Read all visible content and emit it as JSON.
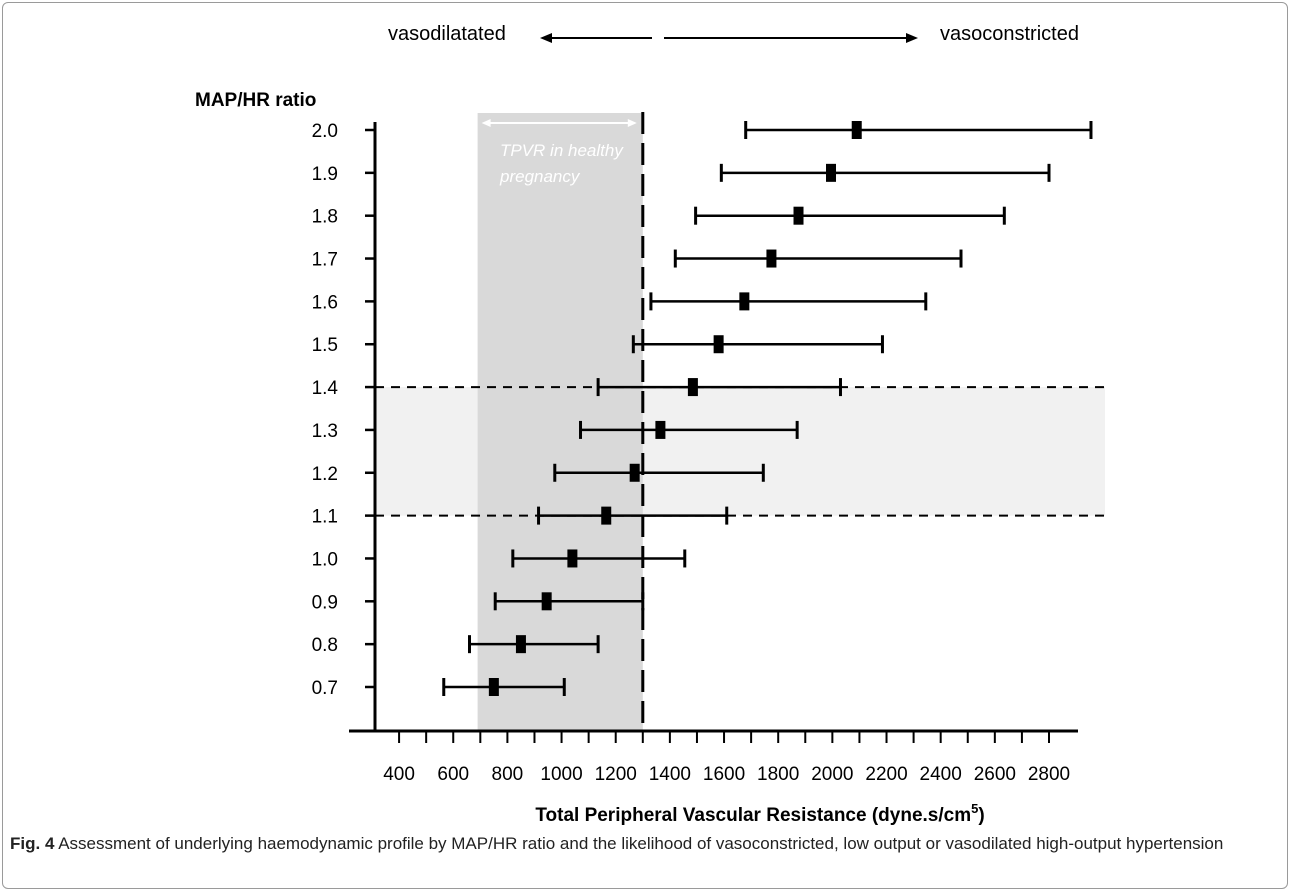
{
  "chart_data": {
    "type": "error-bar",
    "ylabel": "MAP/HR ratio",
    "xlabel": "Total Peripheral Vascular Resistance (dyne.s/cm",
    "xlabel_sup": "5",
    "xlabel_tail": ")",
    "xticks": [
      400,
      600,
      800,
      1000,
      1200,
      1400,
      1600,
      1800,
      2000,
      2200,
      2400,
      2600,
      2800
    ],
    "xlim": [
      200,
      2850
    ],
    "ylim": [
      0.6,
      2.0
    ],
    "categories": [
      "0.7",
      "0.8",
      "0.9",
      "1.0",
      "1.1",
      "1.2",
      "1.3",
      "1.4",
      "1.5",
      "1.6",
      "1.7",
      "1.8",
      "1.9",
      "2.0"
    ],
    "series": [
      {
        "points": [
          {
            "y": 0.7,
            "mean": 750,
            "low": 565,
            "high": 1010
          },
          {
            "y": 0.8,
            "mean": 850,
            "low": 660,
            "high": 1135
          },
          {
            "y": 0.9,
            "mean": 945,
            "low": 755,
            "high": 1300
          },
          {
            "y": 1.0,
            "mean": 1040,
            "low": 820,
            "high": 1455
          },
          {
            "y": 1.1,
            "mean": 1165,
            "low": 915,
            "high": 1610
          },
          {
            "y": 1.2,
            "mean": 1270,
            "low": 975,
            "high": 1745
          },
          {
            "y": 1.3,
            "mean": 1365,
            "low": 1070,
            "high": 1870
          },
          {
            "y": 1.4,
            "mean": 1485,
            "low": 1135,
            "high": 2030
          },
          {
            "y": 1.5,
            "mean": 1580,
            "low": 1265,
            "high": 2185
          },
          {
            "y": 1.6,
            "mean": 1675,
            "low": 1330,
            "high": 2345
          },
          {
            "y": 1.7,
            "mean": 1775,
            "low": 1420,
            "high": 2475
          },
          {
            "y": 1.8,
            "mean": 1875,
            "low": 1495,
            "high": 2635
          },
          {
            "y": 1.9,
            "mean": 1995,
            "low": 1590,
            "high": 2800
          },
          {
            "y": 2.0,
            "mean": 2090,
            "low": 1680,
            "high": 2955
          }
        ]
      }
    ],
    "reference_line_x": 1300,
    "healthy_band_x": [
      690,
      1300
    ],
    "highlight_band_y": [
      1.1,
      1.4
    ],
    "annotations": {
      "healthy": "TPVR in healthy pregnancy",
      "left_direction": "vasodilatated",
      "right_direction": "vasoconstricted"
    },
    "grid": false
  },
  "caption": {
    "label": "Fig. 4",
    "text": " Assessment of underlying haemodynamic profile by MAP/HR ratio and the likelihood of vasoconstricted, low output or vasodilated high-output hypertension"
  },
  "colors": {
    "healthy_band": "#d9d9d9",
    "highlight_band": "#f1f1f1",
    "ink": "#000000",
    "annotation_text": "#ffffff"
  }
}
